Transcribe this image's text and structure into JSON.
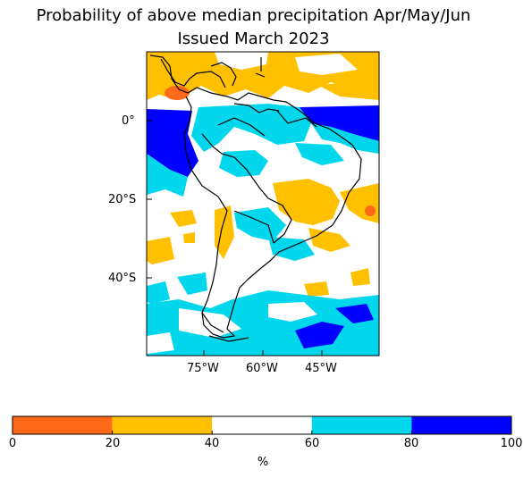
{
  "title": {
    "line1": "Probability of above median precipitation Apr/May/Jun",
    "line2": "Issued March 2023"
  },
  "map": {
    "region": "South America",
    "lat_labels": [
      "0°",
      "20°S",
      "40°S"
    ],
    "lon_labels": [
      "75°W",
      "60°W",
      "45°W"
    ]
  },
  "colorbar": {
    "ticks": [
      "0",
      "20",
      "40",
      "60",
      "80",
      "100"
    ],
    "unit": "%",
    "bins": [
      {
        "range": [
          0,
          20
        ],
        "color": "#ff6a1a"
      },
      {
        "range": [
          20,
          40
        ],
        "color": "#ffc000"
      },
      {
        "range": [
          40,
          60
        ],
        "color": "#ffffff"
      },
      {
        "range": [
          60,
          80
        ],
        "color": "#00d6ec"
      },
      {
        "range": [
          80,
          100
        ],
        "color": "#0000ff"
      }
    ]
  }
}
